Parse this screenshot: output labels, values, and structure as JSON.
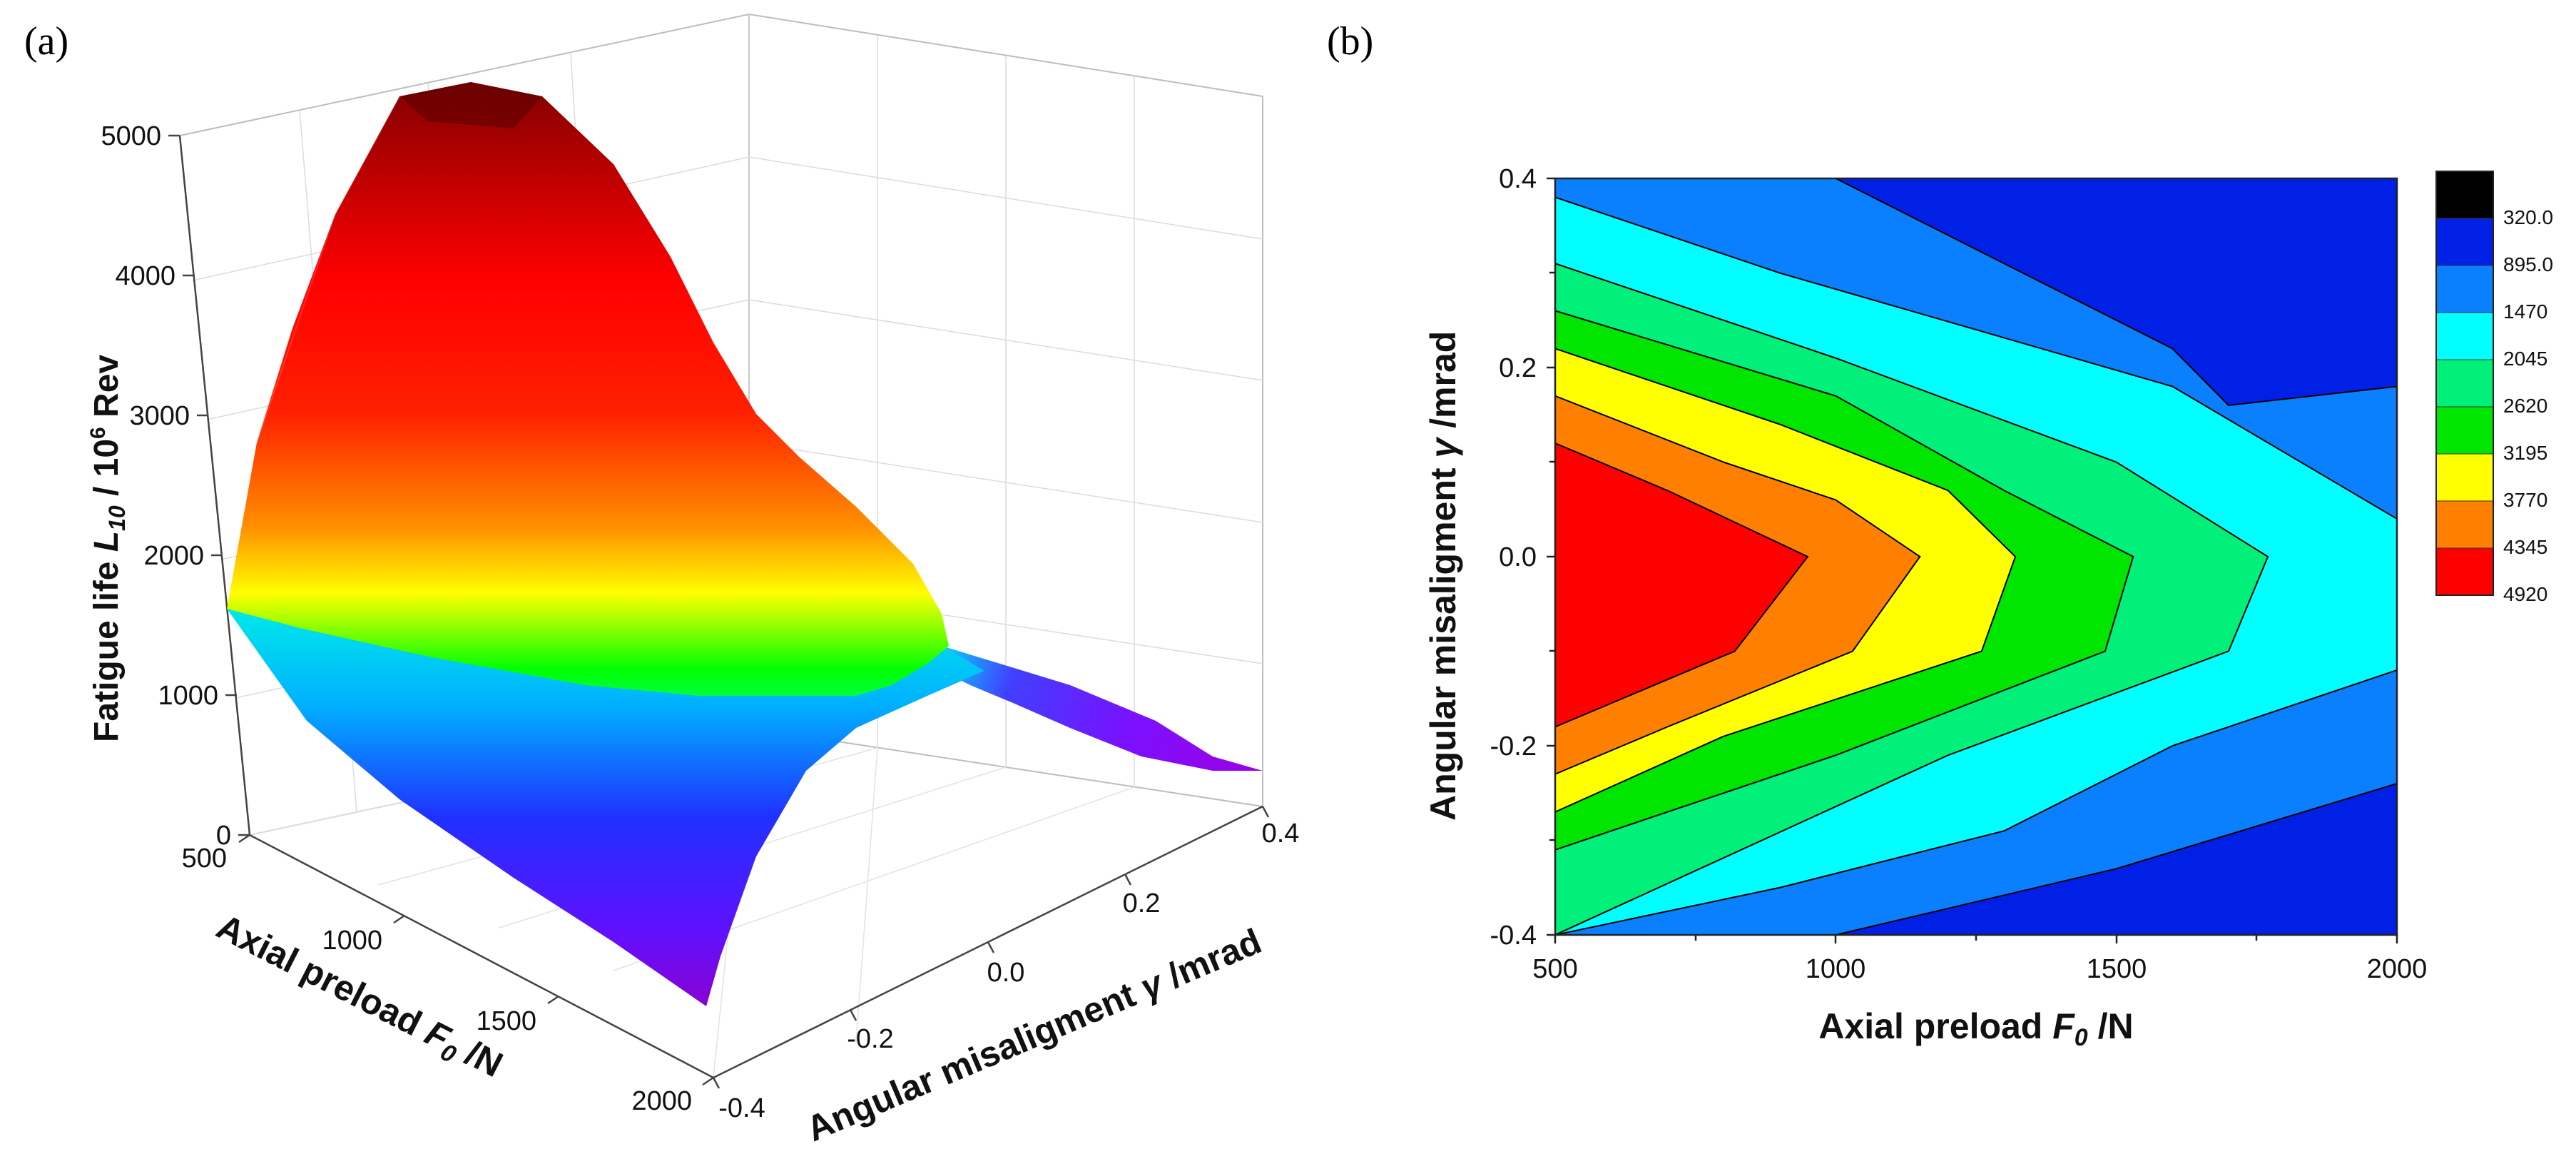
{
  "panels": {
    "a": {
      "label": "(a)"
    },
    "b": {
      "label": "(b)"
    }
  },
  "chart_data": [
    {
      "id": "a",
      "type": "surface3d",
      "z_title": "Fatigue life L10 / 10^6 Rev",
      "z_title_parts": {
        "pre": "Fatigue life ",
        "sym": "L",
        "sub": "10",
        "mid": " / 10",
        "sup": "6",
        "post": " Rev"
      },
      "x_title_parts": {
        "pre": "Axial preload ",
        "sym": "F",
        "sub": "0",
        "post": " /N"
      },
      "y_title_parts": {
        "pre": "Angular misaligment ",
        "sym": "γ",
        "post": " /mrad"
      },
      "z_ticks": [
        "0",
        "1000",
        "2000",
        "3000",
        "4000",
        "5000"
      ],
      "x_ticks": [
        "500",
        "1000",
        "1500",
        "2000"
      ],
      "y_ticks": [
        "-0.4",
        "-0.2",
        "0.0",
        "0.2",
        "0.4"
      ],
      "zlim": [
        0,
        5000
      ],
      "colormap": "rainbow (violet → blue → cyan → green → yellow → red → dark red)"
    },
    {
      "id": "b",
      "type": "contour",
      "xlabel_parts": {
        "pre": "Axial preload ",
        "sym": "F",
        "sub": "0",
        "post": " /N"
      },
      "ylabel_parts": {
        "pre": "Angular misaligment ",
        "sym": "γ",
        "post": " /mrad"
      },
      "xlim": [
        500,
        2000
      ],
      "ylim": [
        -0.4,
        0.4
      ],
      "x_ticks": [
        "500",
        "1000",
        "1500",
        "2000"
      ],
      "y_ticks": [
        "0.4",
        "0.2",
        "0.0",
        "-0.2",
        "-0.4"
      ],
      "levels": [
        {
          "label": "320.0",
          "color": "#000000"
        },
        {
          "label": "895.0",
          "color": "#0020e6"
        },
        {
          "label": "1470",
          "color": "#0a80ff"
        },
        {
          "label": "2045",
          "color": "#00ffff"
        },
        {
          "label": "2620",
          "color": "#00f07a"
        },
        {
          "label": "3195",
          "color": "#00e600"
        },
        {
          "label": "3770",
          "color": "#ffff00"
        },
        {
          "label": "4345",
          "color": "#ff8000"
        },
        {
          "label": "4920",
          "color": "#ff0000"
        }
      ],
      "boundaries": [
        {
          "band": "895.0|1470",
          "points": [
            [
              1000,
              0.4
            ],
            [
              1600,
              0.22
            ],
            [
              1700,
              0.16
            ],
            [
              2000,
              0.18
            ]
          ]
        },
        {
          "band": "1470|2045",
          "points": [
            [
              500,
              0.38
            ],
            [
              900,
              0.3
            ],
            [
              1600,
              0.18
            ],
            [
              2000,
              0.04
            ]
          ]
        },
        {
          "band": "2045|2620",
          "points": [
            [
              500,
              0.31
            ],
            [
              1000,
              0.21
            ],
            [
              1500,
              0.1
            ],
            [
              1770,
              0.0
            ],
            [
              1700,
              -0.1
            ],
            [
              1200,
              -0.21
            ],
            [
              500,
              -0.4
            ]
          ]
        },
        {
          "band": "2620|3195",
          "points": [
            [
              500,
              0.26
            ],
            [
              1000,
              0.17
            ],
            [
              1300,
              0.07
            ],
            [
              1530,
              0.0
            ],
            [
              1480,
              -0.1
            ],
            [
              1000,
              -0.21
            ],
            [
              500,
              -0.31
            ]
          ]
        },
        {
          "band": "3195|3770",
          "points": [
            [
              500,
              0.22
            ],
            [
              900,
              0.14
            ],
            [
              1200,
              0.07
            ],
            [
              1320,
              0.0
            ],
            [
              1260,
              -0.1
            ],
            [
              800,
              -0.19
            ],
            [
              500,
              -0.27
            ]
          ]
        },
        {
          "band": "3770|4345",
          "points": [
            [
              500,
              0.17
            ],
            [
              800,
              0.1
            ],
            [
              1000,
              0.06
            ],
            [
              1150,
              0.0
            ],
            [
              1030,
              -0.1
            ],
            [
              700,
              -0.18
            ],
            [
              500,
              -0.23
            ]
          ]
        },
        {
          "band": "4345|4920",
          "points": [
            [
              500,
              0.12
            ],
            [
              700,
              0.07
            ],
            [
              950,
              0.0
            ],
            [
              820,
              -0.1
            ],
            [
              500,
              -0.18
            ]
          ]
        },
        {
          "band": "895.0 lower",
          "points": [
            [
              1000,
              -0.4
            ],
            [
              1500,
              -0.33
            ],
            [
              2000,
              -0.24
            ]
          ]
        },
        {
          "band": "1470 lower",
          "points": [
            [
              500,
              -0.4
            ],
            [
              900,
              -0.35
            ],
            [
              1300,
              -0.29
            ],
            [
              1600,
              -0.2
            ],
            [
              2000,
              -0.12
            ]
          ]
        }
      ]
    }
  ]
}
